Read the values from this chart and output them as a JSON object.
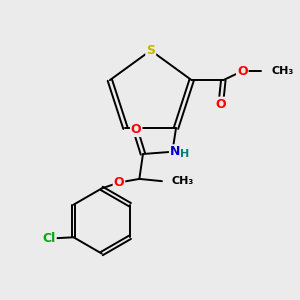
{
  "background_color": "#ebebeb",
  "atom_colors": {
    "S": "#c8b400",
    "O": "#ff0000",
    "N": "#0000cc",
    "H": "#008080",
    "C": "#000000",
    "Cl": "#00aa00"
  },
  "font_size": 9,
  "figsize": [
    3.0,
    3.0
  ],
  "dpi": 100,
  "lw": 1.4
}
